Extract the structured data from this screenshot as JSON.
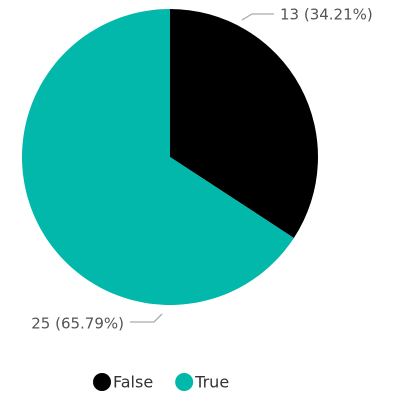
{
  "chart_data": {
    "type": "pie",
    "categories": [
      "False",
      "True"
    ],
    "values": [
      13,
      25
    ],
    "value_labels": [
      "13 (34.21%)",
      "25 (65.79%)"
    ],
    "colors": [
      "#000000",
      "#01b8aa"
    ]
  }
}
